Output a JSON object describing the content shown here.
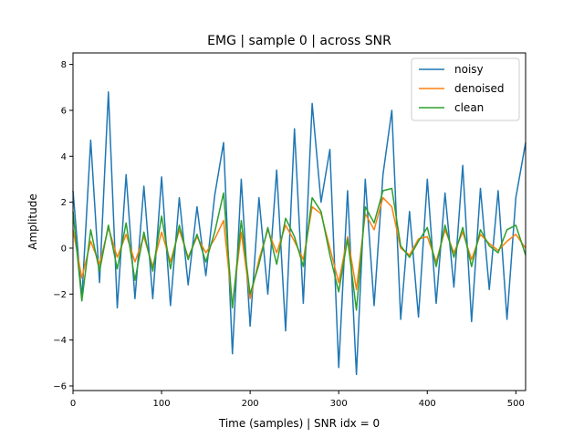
{
  "chart_data": {
    "type": "line",
    "title": "EMG | sample 0 | across SNR",
    "xlabel": "Time (samples) | SNR idx = 0",
    "ylabel": "Amplitude",
    "xlim": [
      0,
      511
    ],
    "ylim": [
      -6.2,
      8.5
    ],
    "xticks": [
      0,
      100,
      200,
      300,
      400,
      500
    ],
    "yticks": [
      -6,
      -4,
      -2,
      0,
      2,
      4,
      6,
      8
    ],
    "grid": false,
    "legend_position": "top-right",
    "x": [
      0,
      10,
      20,
      30,
      40,
      50,
      60,
      70,
      80,
      90,
      100,
      110,
      120,
      130,
      140,
      150,
      160,
      170,
      180,
      190,
      200,
      210,
      220,
      230,
      240,
      250,
      260,
      270,
      280,
      290,
      300,
      310,
      320,
      330,
      340,
      350,
      360,
      370,
      380,
      390,
      400,
      410,
      420,
      430,
      440,
      450,
      460,
      470,
      480,
      490,
      500,
      511
    ],
    "series": [
      {
        "name": "noisy",
        "color": "#1f77b4",
        "values": [
          2.5,
          -2.2,
          4.7,
          -1.5,
          6.8,
          -2.6,
          3.2,
          -2.2,
          2.7,
          -2.2,
          3.1,
          -2.5,
          2.2,
          -1.6,
          1.8,
          -1.2,
          2.3,
          4.6,
          -4.6,
          3.0,
          -3.4,
          2.2,
          -2.0,
          3.4,
          -3.6,
          5.2,
          -2.4,
          6.3,
          2.0,
          4.3,
          -5.2,
          2.5,
          -5.5,
          3.0,
          -2.5,
          3.2,
          6.0,
          -3.1,
          1.6,
          -3.0,
          3.0,
          -2.4,
          2.4,
          -1.7,
          3.6,
          -3.2,
          2.6,
          -1.8,
          2.5,
          -3.1,
          2.2,
          4.6
        ]
      },
      {
        "name": "denoised",
        "color": "#ff7f0e",
        "values": [
          0.8,
          -1.3,
          0.3,
          -0.7,
          0.9,
          -0.4,
          0.6,
          -0.6,
          0.5,
          -0.8,
          0.7,
          -0.6,
          0.8,
          -0.4,
          0.5,
          -0.2,
          0.4,
          1.2,
          -2.5,
          0.7,
          -2.2,
          -0.5,
          0.8,
          -0.2,
          1.0,
          0.3,
          -0.5,
          1.8,
          1.5,
          0.0,
          -1.5,
          0.5,
          -1.8,
          1.5,
          0.8,
          2.2,
          1.8,
          0.0,
          -0.3,
          0.4,
          0.5,
          -0.6,
          0.8,
          -0.2,
          0.7,
          -0.5,
          0.6,
          0.2,
          -0.1,
          0.3,
          0.6,
          0.0
        ]
      },
      {
        "name": "clean",
        "color": "#2ca02c",
        "values": [
          1.6,
          -2.3,
          0.8,
          -1.0,
          1.0,
          -0.9,
          1.1,
          -1.4,
          0.7,
          -1.0,
          1.4,
          -0.9,
          1.0,
          -0.5,
          0.6,
          -0.6,
          0.7,
          2.4,
          -2.6,
          1.2,
          -2.0,
          -0.7,
          0.9,
          -0.7,
          1.3,
          0.5,
          -0.8,
          2.2,
          1.6,
          -0.3,
          -1.9,
          0.4,
          -2.7,
          1.8,
          1.1,
          2.5,
          2.6,
          0.1,
          -0.4,
          0.3,
          0.9,
          -0.8,
          1.0,
          -0.4,
          0.9,
          -0.8,
          0.8,
          0.1,
          -0.2,
          0.8,
          1.0,
          -0.3
        ]
      }
    ]
  }
}
